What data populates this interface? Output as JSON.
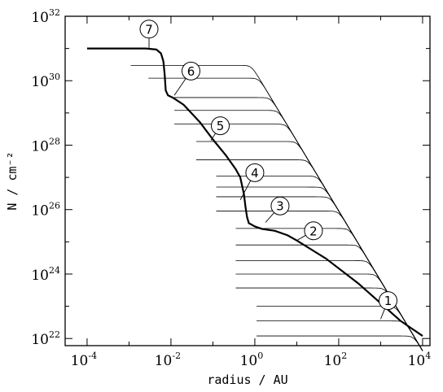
{
  "chart_data": {
    "type": "line",
    "title": "",
    "xlabel": "radius / AU",
    "ylabel": "N / cm⁻²",
    "x_scale": "log",
    "y_scale": "log",
    "xlim": [
      3e-05,
      15000
    ],
    "ylim": [
      6e+21,
      1e+32
    ],
    "x_ticks": [
      {
        "base": "10",
        "exp": "-4",
        "value": 0.0001
      },
      {
        "base": "10",
        "exp": "-2",
        "value": 0.01
      },
      {
        "base": "10",
        "exp": "0",
        "value": 1
      },
      {
        "base": "10",
        "exp": "2",
        "value": 100
      },
      {
        "base": "10",
        "exp": "4",
        "value": 10000
      }
    ],
    "y_ticks": [
      {
        "base": "10",
        "exp": "22",
        "value": 1e+22
      },
      {
        "base": "10",
        "exp": "24",
        "value": 1e+24
      },
      {
        "base": "10",
        "exp": "26",
        "value": 1e+26
      },
      {
        "base": "10",
        "exp": "28",
        "value": 1e+28
      },
      {
        "base": "10",
        "exp": "30",
        "value": 1e+30
      },
      {
        "base": "10",
        "exp": "32",
        "value": 1e+32
      }
    ],
    "grid": false,
    "legend": "none",
    "envelope": {
      "x_start": 0.01,
      "x_end": 10000,
      "log_slope": -2.17,
      "log_intercept": 30.3
    },
    "series": [
      {
        "start_x": 0.0011,
        "plateau": 1e+31,
        "knee": 0.008,
        "cutoff": 0.01,
        "bold": true
      },
      {
        "start_x": 0.0011,
        "plateau": 3e+30,
        "knee": 0.004,
        "bold": false
      },
      {
        "start_x": 0.0029,
        "plateau": 1.2e+30,
        "knee": 0.006,
        "bold": false
      },
      {
        "start_x": 0.012,
        "plateau": 3e+29,
        "knee": 0.012,
        "bold": false
      },
      {
        "start_x": 0.012,
        "plateau": 1.2e+29,
        "knee": 0.02,
        "bold": false
      },
      {
        "start_x": 0.012,
        "plateau": 4.5e+28,
        "knee": 0.035,
        "bold": false
      },
      {
        "start_x": 0.04,
        "plateau": 1.3e+28,
        "knee": 0.07,
        "bold": false
      },
      {
        "start_x": 0.04,
        "plateau": 3.5e+27,
        "knee": 0.15,
        "bold": false
      },
      {
        "start_x": 0.12,
        "plateau": 1.1e+27,
        "knee": 0.4,
        "bold": false
      },
      {
        "start_x": 0.12,
        "plateau": 5e+26,
        "knee": 0.6,
        "bold": false
      },
      {
        "start_x": 0.12,
        "plateau": 2.5e+26,
        "knee": 1.0,
        "bold": false
      },
      {
        "start_x": 0.12,
        "plateau": 9e+25,
        "knee": 1.5,
        "bold": false
      },
      {
        "start_x": 0.35,
        "plateau": 2.6e+25,
        "knee": 3.0,
        "bold": false
      },
      {
        "start_x": 0.35,
        "plateau": 8e+24,
        "knee": 8.0,
        "bold": false
      },
      {
        "start_x": 0.35,
        "plateau": 2.6e+24,
        "knee": 30.0,
        "bold": false
      },
      {
        "start_x": 0.35,
        "plateau": 1e+24,
        "knee": 80.0,
        "bold": false
      },
      {
        "start_x": 0.35,
        "plateau": 3.7e+23,
        "knee": 250.0,
        "bold": false
      },
      {
        "start_x": 1.1,
        "plateau": 1e+23,
        "knee": 1000.0,
        "bold": false
      },
      {
        "start_x": 1.1,
        "plateau": 3.5e+22,
        "knee": 2000.0,
        "bold": false
      },
      {
        "start_x": 1.1,
        "plateau": 1.2e+22,
        "knee": 5000.0,
        "bold": false
      }
    ],
    "bold_curve": [
      [
        0.0001,
        1e+31
      ],
      [
        0.0025,
        1e+31
      ],
      [
        0.0045,
        9.3e+30
      ],
      [
        0.0058,
        7e+30
      ],
      [
        0.0066,
        4e+30
      ],
      [
        0.0071,
        1.5e+30
      ],
      [
        0.0075,
        5e+29
      ],
      [
        0.0085,
        3.5e+29
      ],
      [
        0.011,
        3e+29
      ],
      [
        0.02,
        1.8e+29
      ],
      [
        0.05,
        5e+28
      ],
      [
        0.1,
        1.5e+28
      ],
      [
        0.2,
        5e+27
      ],
      [
        0.35,
        1.8e+27
      ],
      [
        0.45,
        1e+27
      ],
      [
        0.55,
        3e+26
      ],
      [
        0.6,
        1.2e+26
      ],
      [
        0.65,
        6e+25
      ],
      [
        0.72,
        3.8e+25
      ],
      [
        1.0,
        3e+25
      ],
      [
        1.5,
        2.5e+25
      ],
      [
        3.0,
        2.2e+25
      ],
      [
        6.0,
        1.6e+25
      ],
      [
        10.0,
        1.1e+25
      ],
      [
        50.0,
        3e+24
      ],
      [
        300.0,
        5e+23
      ],
      [
        3000.0,
        3.5e+22
      ],
      [
        10000.0,
        1.2e+22
      ]
    ],
    "annotations": [
      {
        "label": "1",
        "x": 1500,
        "y": 1.5e+23,
        "tip_x": 1000,
        "tip_y": 4e+22
      },
      {
        "label": "2",
        "x": 25,
        "y": 2.2e+25,
        "tip_x": 10,
        "tip_y": 1.1e+25
      },
      {
        "label": "3",
        "x": 4,
        "y": 1.3e+26,
        "tip_x": 1.8,
        "tip_y": 4e+25
      },
      {
        "label": "4",
        "x": 1.0,
        "y": 1.4e+27,
        "tip_x": 0.45,
        "tip_y": 2e+26
      },
      {
        "label": "5",
        "x": 0.15,
        "y": 4e+28,
        "tip_x": 0.09,
        "tip_y": 1.4e+28
      },
      {
        "label": "6",
        "x": 0.03,
        "y": 2e+30,
        "tip_x": 0.012,
        "tip_y": 3.5e+29
      },
      {
        "label": "7",
        "x": 0.003,
        "y": 4e+31,
        "tip_x": 0.003,
        "tip_y": 1e+31
      }
    ]
  }
}
